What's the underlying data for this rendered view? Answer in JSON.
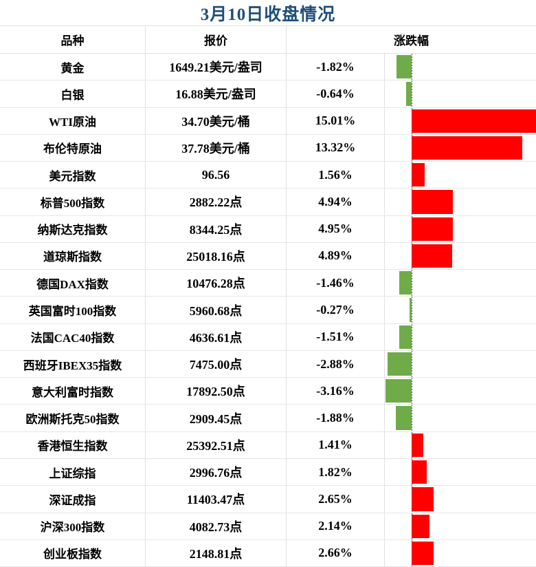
{
  "title": "3月10日收盘情况",
  "columns": {
    "name": "品种",
    "quote": "报价",
    "change": "涨跌幅"
  },
  "colors": {
    "title_text": "#1f4e79",
    "positive_bar": "#ff0000",
    "negative_bar": "#6fac49",
    "gridline": "#e2e2e2",
    "zero_line": "#595959",
    "text": "#000000"
  },
  "rows": [
    {
      "name": "黄金",
      "quote": "1649.21美元/盎司",
      "change": "-1.82%",
      "value": -1.82
    },
    {
      "name": "白银",
      "quote": "16.88美元/盎司",
      "change": "-0.64%",
      "value": -0.64
    },
    {
      "name": "WTI原油",
      "quote": "34.70美元/桶",
      "change": "15.01%",
      "value": 15.01
    },
    {
      "name": "布伦特原油",
      "quote": "37.78美元/桶",
      "change": "13.32%",
      "value": 13.32
    },
    {
      "name": "美元指数",
      "quote": "96.56",
      "change": "1.56%",
      "value": 1.56
    },
    {
      "name": "标普500指数",
      "quote": "2882.22点",
      "change": "4.94%",
      "value": 4.94
    },
    {
      "name": "纳斯达克指数",
      "quote": "8344.25点",
      "change": "4.95%",
      "value": 4.95
    },
    {
      "name": "道琼斯指数",
      "quote": "25018.16点",
      "change": "4.89%",
      "value": 4.89
    },
    {
      "name": "德国DAX指数",
      "quote": "10476.28点",
      "change": "-1.46%",
      "value": -1.46
    },
    {
      "name": "英国富时100指数",
      "quote": "5960.68点",
      "change": "-0.27%",
      "value": -0.27
    },
    {
      "name": "法国CAC40指数",
      "quote": "4636.61点",
      "change": "-1.51%",
      "value": -1.51
    },
    {
      "name": "西班牙IBEX35指数",
      "quote": "7475.00点",
      "change": "-2.88%",
      "value": -2.88
    },
    {
      "name": "意大利富时指数",
      "quote": "17892.50点",
      "change": "-3.16%",
      "value": -3.16
    },
    {
      "name": "欧洲斯托克50指数",
      "quote": "2909.45点",
      "change": "-1.88%",
      "value": -1.88
    },
    {
      "name": "香港恒生指数",
      "quote": "25392.51点",
      "change": "1.41%",
      "value": 1.41
    },
    {
      "name": "上证综指",
      "quote": "2996.76点",
      "change": "1.82%",
      "value": 1.82
    },
    {
      "name": "深证成指",
      "quote": "11403.47点",
      "change": "2.65%",
      "value": 2.65
    },
    {
      "name": "沪深300指数",
      "quote": "4082.73点",
      "change": "2.14%",
      "value": 2.14
    },
    {
      "name": "创业板指数",
      "quote": "2148.81点",
      "change": "2.66%",
      "value": 2.66
    }
  ],
  "chart_data": {
    "type": "bar",
    "orientation": "horizontal",
    "title": "3月10日收盘情况",
    "xlabel": "涨跌幅 (%)",
    "ylabel": "品种",
    "xlim": [
      -3.23,
      15.01
    ],
    "grid": true,
    "categories": [
      "黄金",
      "白银",
      "WTI原油",
      "布伦特原油",
      "美元指数",
      "标普500指数",
      "纳斯达克指数",
      "道琼斯指数",
      "德国DAX指数",
      "英国富时100指数",
      "法国CAC40指数",
      "西班牙IBEX35指数",
      "意大利富时指数",
      "欧洲斯托克50指数",
      "香港恒生指数",
      "上证综指",
      "深证成指",
      "沪深300指数",
      "创业板指数"
    ],
    "values": [
      -1.82,
      -0.64,
      15.01,
      13.32,
      1.56,
      4.94,
      4.95,
      4.89,
      -1.46,
      -0.27,
      -1.51,
      -2.88,
      -3.16,
      -1.88,
      1.41,
      1.82,
      2.65,
      2.14,
      2.66
    ],
    "positive_color": "#ff0000",
    "negative_color": "#6fac49"
  }
}
